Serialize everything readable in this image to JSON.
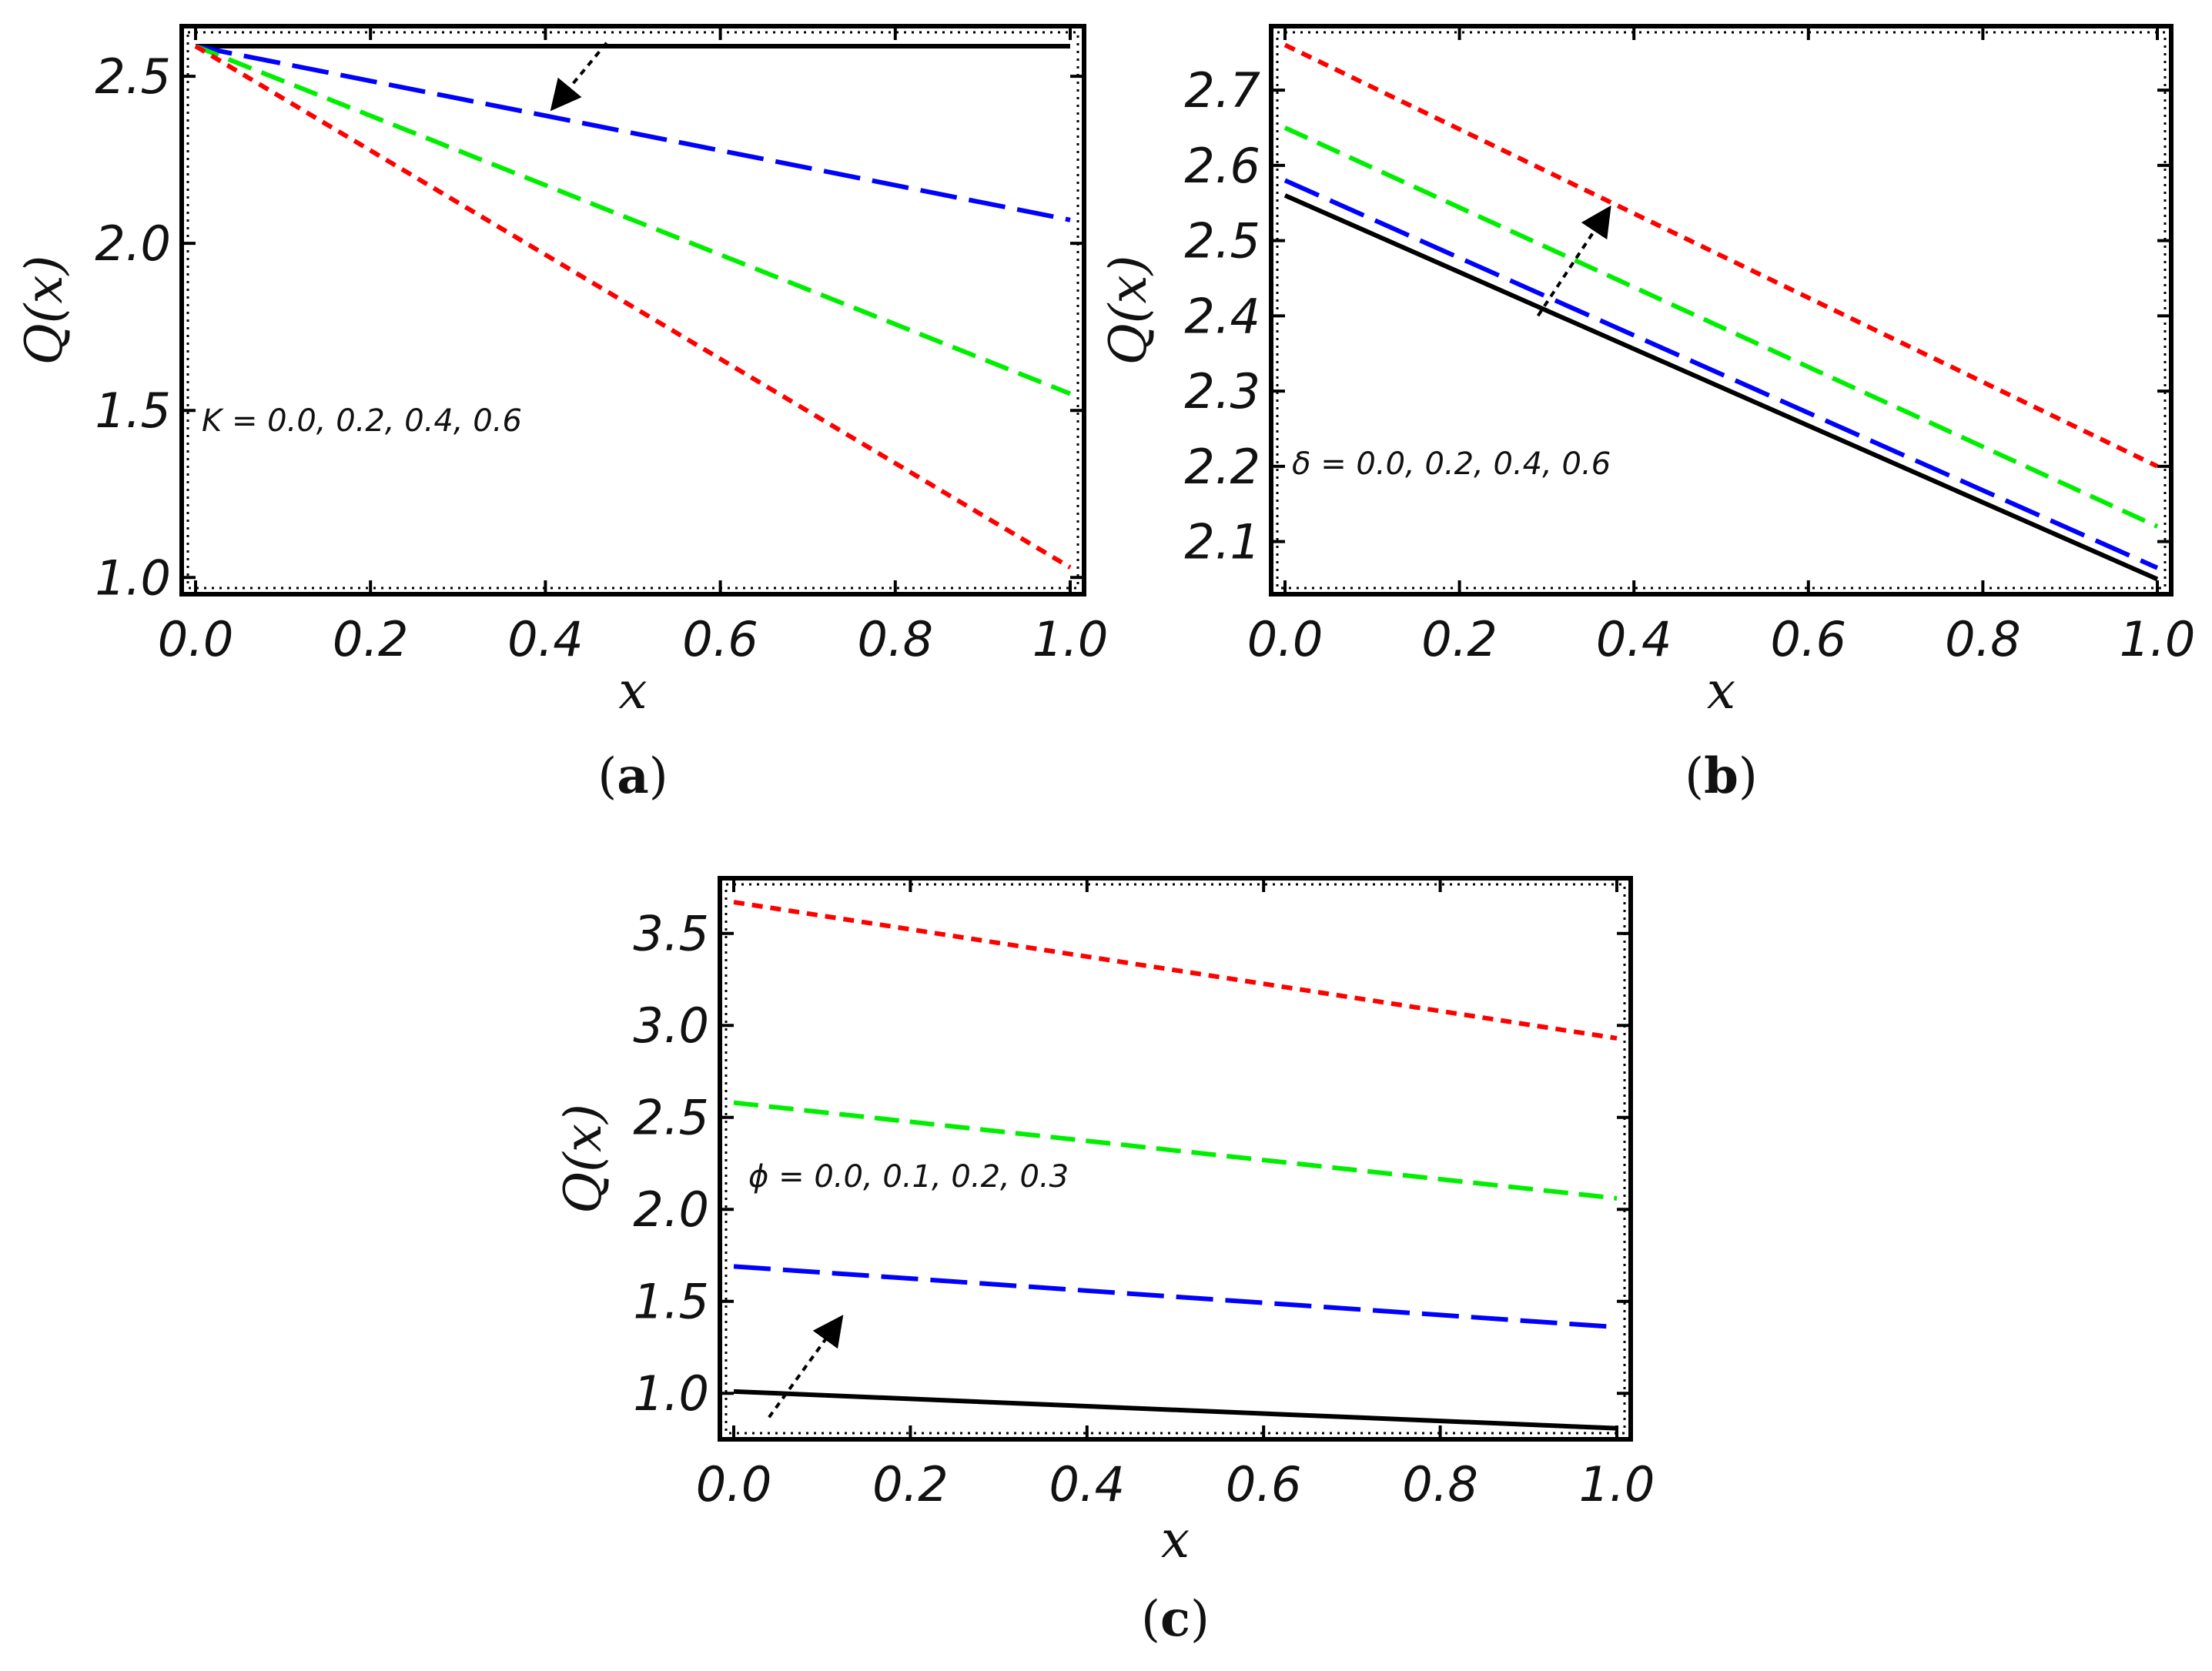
{
  "chart_data": [
    {
      "type": "line",
      "panel_label": "a",
      "xlabel": "x",
      "ylabel": "Q(x)",
      "xlim": [
        0.0,
        1.0
      ],
      "ylim": [
        0.95,
        2.65
      ],
      "xticks": [
        "0.0",
        "0.2",
        "0.4",
        "0.6",
        "0.8",
        "1.0"
      ],
      "yticks": [
        "1.0",
        "1.5",
        "2.0",
        "2.5"
      ],
      "annotation": "K = 0.0, 0.2, 0.4, 0.6",
      "arrow": {
        "from": [
          0.47,
          2.6
        ],
        "to": [
          0.41,
          2.41
        ]
      },
      "series": [
        {
          "name": "K = 0.0",
          "color": "#000000",
          "style": "solid",
          "x": [
            0.0,
            1.0
          ],
          "y": [
            2.59,
            2.59
          ]
        },
        {
          "name": "K = 0.2",
          "color": "#0000ff",
          "style": "long-dash",
          "x": [
            0.0,
            1.0
          ],
          "y": [
            2.59,
            2.07
          ]
        },
        {
          "name": "K = 0.4",
          "color": "#00ee00",
          "style": "dash",
          "x": [
            0.0,
            1.0
          ],
          "y": [
            2.59,
            1.55
          ]
        },
        {
          "name": "K = 0.6",
          "color": "#ff0000",
          "style": "short-dash",
          "x": [
            0.0,
            1.0
          ],
          "y": [
            2.59,
            1.03
          ]
        }
      ]
    },
    {
      "type": "line",
      "panel_label": "b",
      "xlabel": "x",
      "ylabel": "Q(x)",
      "xlim": [
        0.0,
        1.0
      ],
      "ylim": [
        2.03,
        2.785
      ],
      "xticks": [
        "0.0",
        "0.2",
        "0.4",
        "0.6",
        "0.8",
        "1.0"
      ],
      "yticks": [
        "2.1",
        "2.2",
        "2.3",
        "2.4",
        "2.5",
        "2.6",
        "2.7"
      ],
      "annotation": "δ = 0.0, 0.2, 0.4, 0.6",
      "arrow": {
        "from": [
          0.29,
          2.4
        ],
        "to": [
          0.37,
          2.54
        ]
      },
      "series": [
        {
          "name": "δ = 0.0",
          "color": "#000000",
          "style": "solid",
          "x": [
            0.0,
            1.0
          ],
          "y": [
            2.56,
            2.05
          ]
        },
        {
          "name": "δ = 0.2",
          "color": "#0000ff",
          "style": "long-dash",
          "x": [
            0.0,
            1.0
          ],
          "y": [
            2.58,
            2.065
          ]
        },
        {
          "name": "δ = 0.4",
          "color": "#00ee00",
          "style": "dash",
          "x": [
            0.0,
            1.0
          ],
          "y": [
            2.65,
            2.12
          ]
        },
        {
          "name": "δ = 0.6",
          "color": "#ff0000",
          "style": "short-dash",
          "x": [
            0.0,
            1.0
          ],
          "y": [
            2.76,
            2.2
          ]
        }
      ]
    },
    {
      "type": "line",
      "panel_label": "c",
      "xlabel": "x",
      "ylabel": "Q(x)",
      "xlim": [
        0.0,
        1.0
      ],
      "ylim": [
        0.75,
        3.8
      ],
      "xticks": [
        "0.0",
        "0.2",
        "0.4",
        "0.6",
        "0.8",
        "1.0"
      ],
      "yticks": [
        "1.0",
        "1.5",
        "2.0",
        "2.5",
        "3.0",
        "3.5"
      ],
      "annotation": "ϕ = 0.0, 0.1, 0.2, 0.3",
      "arrow": {
        "from": [
          0.04,
          0.87
        ],
        "to": [
          0.12,
          1.4
        ]
      },
      "series": [
        {
          "name": "ϕ = 0.0",
          "color": "#000000",
          "style": "solid",
          "x": [
            0.0,
            1.0
          ],
          "y": [
            1.01,
            0.81
          ]
        },
        {
          "name": "ϕ = 0.1",
          "color": "#0000ff",
          "style": "long-dash",
          "x": [
            0.0,
            1.0
          ],
          "y": [
            1.69,
            1.36
          ]
        },
        {
          "name": "ϕ = 0.2",
          "color": "#00ee00",
          "style": "dash",
          "x": [
            0.0,
            1.0
          ],
          "y": [
            2.58,
            2.06
          ]
        },
        {
          "name": "ϕ = 0.3",
          "color": "#ff0000",
          "style": "short-dash",
          "x": [
            0.0,
            1.0
          ],
          "y": [
            3.67,
            2.93
          ]
        }
      ]
    }
  ]
}
